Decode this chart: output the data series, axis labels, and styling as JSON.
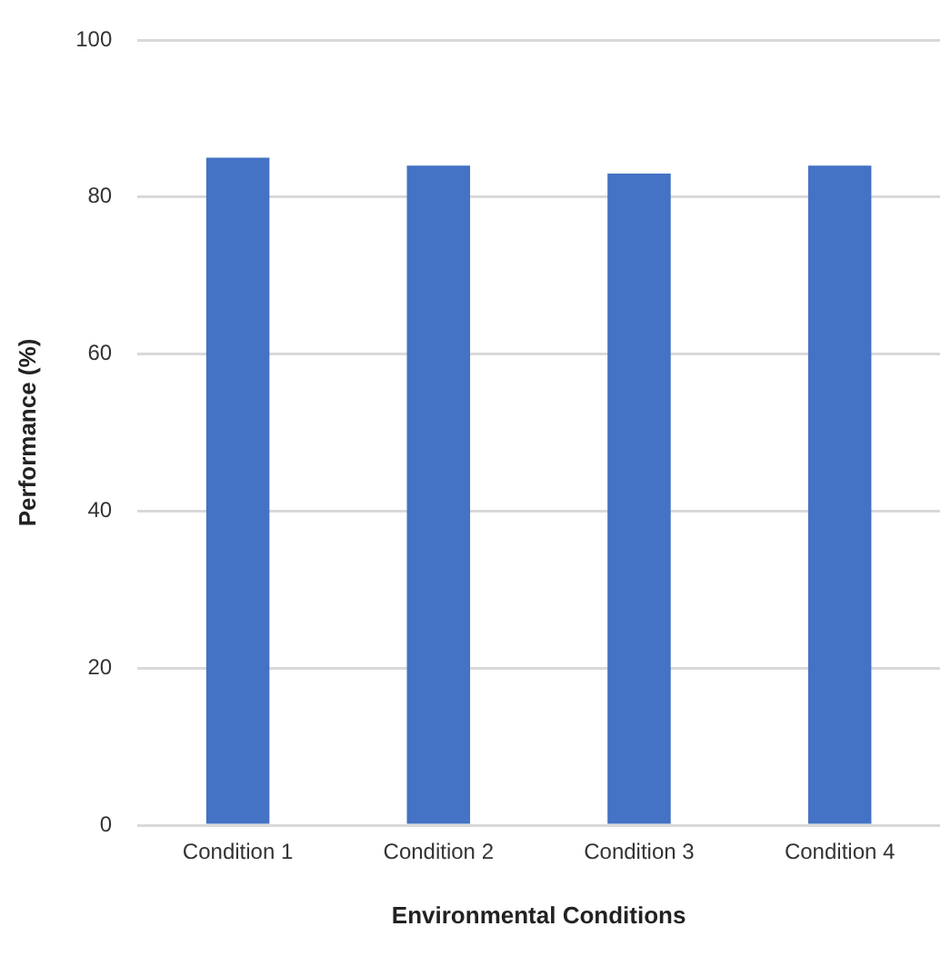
{
  "chart_data": {
    "type": "bar",
    "xlabel": "Environmental Conditions",
    "ylabel": "Performance (%)",
    "categories": [
      "Condition 1",
      "Condition 2",
      "Condition 3",
      "Condition 4"
    ],
    "values": [
      85,
      84,
      83,
      84
    ],
    "color": "#4472c4",
    "ylim": [
      0,
      100
    ],
    "yticks": [
      0,
      20,
      40,
      60,
      80,
      100
    ],
    "grid": "y"
  }
}
